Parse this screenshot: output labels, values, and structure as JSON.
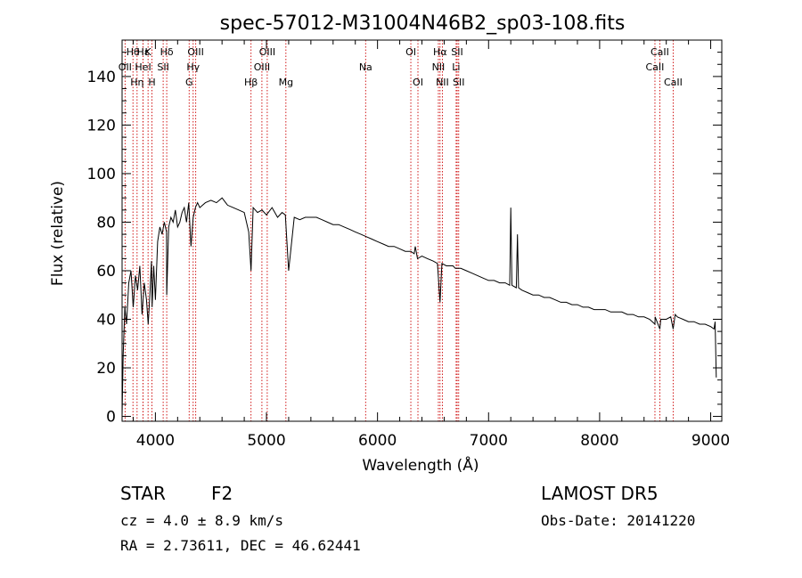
{
  "chart_data": {
    "type": "line",
    "title": "spec-57012-M31004N46B2_sp03-108.fits",
    "xlabel": "Wavelength (Å)",
    "ylabel": "Flux (relative)",
    "xlim": [
      3700,
      9100
    ],
    "ylim": [
      -2,
      155
    ],
    "x_ticks": [
      4000,
      5000,
      6000,
      7000,
      8000,
      9000
    ],
    "y_ticks": [
      0,
      20,
      40,
      60,
      80,
      100,
      120,
      140
    ],
    "grid": false,
    "colors": {
      "spectrum": "#000000",
      "line_marker": "#cc0000",
      "axes": "#000000"
    },
    "series": [
      {
        "x": [
          3700,
          3710,
          3725,
          3740,
          3760,
          3780,
          3800,
          3820,
          3840,
          3860,
          3880,
          3900,
          3920,
          3935,
          3950,
          3965,
          3970,
          3985,
          4000,
          4020,
          4040,
          4060,
          4080,
          4100,
          4102,
          4120,
          4140,
          4160,
          4180,
          4200,
          4220,
          4240,
          4260,
          4280,
          4300,
          4320,
          4340,
          4360,
          4380,
          4400,
          4450,
          4500,
          4550,
          4600,
          4650,
          4700,
          4750,
          4800,
          4840,
          4861,
          4880,
          4920,
          4960,
          5000,
          5050,
          5100,
          5140,
          5170,
          5200,
          5250,
          5300,
          5350,
          5400,
          5450,
          5500,
          5550,
          5600,
          5650,
          5700,
          5750,
          5800,
          5850,
          5900,
          5950,
          6000,
          6050,
          6100,
          6150,
          6200,
          6250,
          6300,
          6330,
          6340,
          6360,
          6400,
          6450,
          6500,
          6540,
          6563,
          6580,
          6620,
          6680,
          6700,
          6750,
          6800,
          6850,
          6900,
          6950,
          7000,
          7050,
          7100,
          7150,
          7190,
          7200,
          7210,
          7250,
          7260,
          7270,
          7300,
          7350,
          7400,
          7450,
          7500,
          7550,
          7600,
          7650,
          7700,
          7750,
          7800,
          7850,
          7900,
          7950,
          8000,
          8050,
          8100,
          8150,
          8200,
          8250,
          8300,
          8350,
          8400,
          8450,
          8498,
          8500,
          8542,
          8550,
          8600,
          8640,
          8662,
          8680,
          8700,
          8750,
          8800,
          8850,
          8900,
          8950,
          9000,
          9030,
          9040,
          9050
        ],
        "y": [
          0,
          25,
          45,
          38,
          55,
          60,
          45,
          58,
          52,
          62,
          42,
          55,
          48,
          38,
          50,
          64,
          45,
          62,
          48,
          72,
          78,
          75,
          80,
          76,
          50,
          78,
          82,
          80,
          85,
          78,
          80,
          84,
          86,
          80,
          88,
          70,
          82,
          86,
          88,
          86,
          88,
          89,
          88,
          90,
          87,
          86,
          85,
          84,
          76,
          60,
          86,
          84,
          85,
          83,
          86,
          82,
          84,
          83,
          60,
          82,
          81,
          82,
          82,
          82,
          81,
          80,
          79,
          79,
          78,
          77,
          76,
          75,
          74,
          73,
          72,
          71,
          70,
          70,
          69,
          68,
          68,
          67,
          70,
          65,
          66,
          65,
          64,
          63,
          47,
          63,
          62,
          62,
          61,
          61,
          60,
          59,
          58,
          57,
          56,
          56,
          55,
          55,
          54,
          86,
          54,
          53,
          75,
          53,
          52,
          51,
          50,
          50,
          49,
          49,
          48,
          47,
          47,
          46,
          46,
          45,
          45,
          44,
          44,
          44,
          43,
          43,
          43,
          42,
          42,
          41,
          41,
          40,
          38,
          41,
          36,
          40,
          40,
          41,
          36,
          42,
          41,
          40,
          39,
          39,
          38,
          38,
          37,
          36,
          39,
          16
        ]
      }
    ],
    "line_markers": [
      {
        "label": "Hθ",
        "x": 3798,
        "row": 1
      },
      {
        "label": "OII",
        "x": 3727,
        "row": 2
      },
      {
        "label": "Hη",
        "x": 3835,
        "row": 3
      },
      {
        "label": "Hε",
        "x": 3889,
        "row": 1
      },
      {
        "label": "K",
        "x": 3934,
        "row": 1
      },
      {
        "label": "HeI",
        "x": 3889,
        "row": 2
      },
      {
        "label": "H",
        "x": 3969,
        "row": 3
      },
      {
        "label": "Hδ",
        "x": 4102,
        "row": 1
      },
      {
        "label": "SII",
        "x": 4070,
        "row": 2
      },
      {
        "label": "OIII",
        "x": 4363,
        "row": 1
      },
      {
        "label": "Hγ",
        "x": 4340,
        "row": 2
      },
      {
        "label": "G",
        "x": 4304,
        "row": 3
      },
      {
        "label": "OIII",
        "x": 5007,
        "row": 1
      },
      {
        "label": "OIII",
        "x": 4959,
        "row": 2
      },
      {
        "label": "Hβ",
        "x": 4861,
        "row": 3
      },
      {
        "label": "Mg",
        "x": 5175,
        "row": 3
      },
      {
        "label": "Na",
        "x": 5893,
        "row": 2
      },
      {
        "label": "OI",
        "x": 6300,
        "row": 1
      },
      {
        "label": "OI",
        "x": 6364,
        "row": 3
      },
      {
        "label": "Hα",
        "x": 6563,
        "row": 1
      },
      {
        "label": "SII",
        "x": 6717,
        "row": 1
      },
      {
        "label": "NII",
        "x": 6548,
        "row": 2
      },
      {
        "label": "Li",
        "x": 6708,
        "row": 2
      },
      {
        "label": "NII",
        "x": 6584,
        "row": 3
      },
      {
        "label": "SII",
        "x": 6731,
        "row": 3
      },
      {
        "label": "CaII",
        "x": 8542,
        "row": 1
      },
      {
        "label": "CaII",
        "x": 8498,
        "row": 2
      },
      {
        "label": "CaII",
        "x": 8662,
        "row": 3
      }
    ]
  },
  "info": {
    "class_label": "STAR",
    "subclass_label": "F2",
    "cz_line": "cz = 4.0 ± 8.9 km/s",
    "radec_line": "RA =   2.73611, DEC =  46.62441",
    "survey_label": "LAMOST DR5",
    "obs_date_line": "Obs-Date: 20141220"
  }
}
